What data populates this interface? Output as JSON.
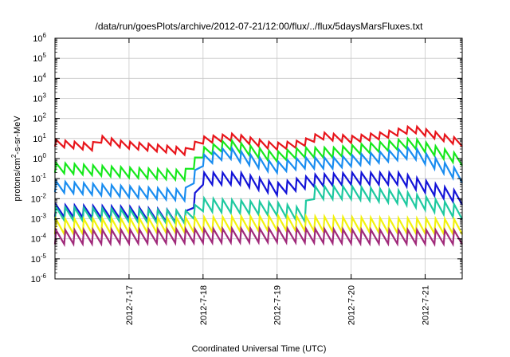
{
  "chart_data": {
    "type": "line",
    "title": "/data/run/goesPlots/archive/2012-07-21/12:00/flux/../flux/5daysMarsFluxes.txt",
    "xlabel": "Coordinated Universal Time (UTC)",
    "ylabel": "protons/cm²-s-sr-MeV",
    "yscale": "log",
    "ylim": [
      1e-06,
      1000000.0
    ],
    "xlim": [
      "2012-07-16T00:00",
      "2012-07-21T12:00"
    ],
    "grid": true,
    "legend": "none",
    "x_ticks": [
      {
        "label": "2012-7-17",
        "date": "2012-07-17"
      },
      {
        "label": "2012-7-18",
        "date": "2012-07-18"
      },
      {
        "label": "2012-7-19",
        "date": "2012-07-19"
      },
      {
        "label": "2012-7-20",
        "date": "2012-07-20"
      },
      {
        "label": "2012-7-21",
        "date": "2012-07-21"
      }
    ],
    "y_ticks": [
      {
        "base": "10",
        "exp": "-6",
        "value": 1e-06
      },
      {
        "base": "10",
        "exp": "-5",
        "value": 1e-05
      },
      {
        "base": "10",
        "exp": "-4",
        "value": 0.0001
      },
      {
        "base": "10",
        "exp": "-3",
        "value": 0.001
      },
      {
        "base": "10",
        "exp": "-2",
        "value": 0.01
      },
      {
        "base": "10",
        "exp": "-1",
        "value": 0.1
      },
      {
        "base": "10",
        "exp": "0",
        "value": 1
      },
      {
        "base": "10",
        "exp": "1",
        "value": 10
      },
      {
        "base": "10",
        "exp": "2",
        "value": 100
      },
      {
        "base": "10",
        "exp": "3",
        "value": 1000
      },
      {
        "base": "10",
        "exp": "4",
        "value": 10000
      },
      {
        "base": "10",
        "exp": "5",
        "value": 100000
      },
      {
        "base": "10",
        "exp": "6",
        "value": 1000000
      }
    ],
    "series": [
      {
        "color": "#e8151b",
        "x": [
          "2012-07-16T00:00",
          "2012-07-16T12:00",
          "2012-07-16T14:00",
          "2012-07-16T22:00",
          "2012-07-17T12:00",
          "2012-07-17T19:00",
          "2012-07-17T23:00",
          "2012-07-18T10:00",
          "2012-07-18T23:00",
          "2012-07-19T08:00",
          "2012-07-19T14:00",
          "2012-07-20T00:00",
          "2012-07-20T10:00",
          "2012-07-20T20:00",
          "2012-07-21T12:00"
        ],
        "y": [
          6.0,
          3.8,
          10.0,
          5.0,
          3.0,
          2.2,
          8.0,
          12.0,
          4.0,
          5.5,
          14.0,
          9.0,
          14.0,
          30.0,
          6.0
        ],
        "sawtooth": 0.35
      },
      {
        "color": "#16e81c",
        "x": [
          "2012-07-16T00:00",
          "2012-07-17T00:00",
          "2012-07-17T18:00",
          "2012-07-18T00:00",
          "2012-07-18T08:00",
          "2012-07-18T23:00",
          "2012-07-19T08:00",
          "2012-07-19T18:00",
          "2012-07-20T10:00",
          "2012-07-20T20:00",
          "2012-07-21T12:00"
        ],
        "y": [
          0.35,
          0.2,
          0.15,
          2.0,
          5.0,
          1.2,
          2.0,
          2.0,
          4.0,
          6.0,
          0.8
        ],
        "sawtooth": 0.5
      },
      {
        "color": "#1a8df0",
        "x": [
          "2012-07-16T00:00",
          "2012-07-17T00:00",
          "2012-07-17T18:00",
          "2012-07-18T00:00",
          "2012-07-18T08:00",
          "2012-07-18T23:00",
          "2012-07-19T08:00",
          "2012-07-19T18:00",
          "2012-07-20T10:00",
          "2012-07-20T20:00",
          "2012-07-21T12:00"
        ],
        "y": [
          0.04,
          0.022,
          0.015,
          0.8,
          2.0,
          0.35,
          0.6,
          0.6,
          1.2,
          2.0,
          0.12
        ],
        "sawtooth": 0.55
      },
      {
        "color": "#1414d8",
        "x": [
          "2012-07-16T00:00",
          "2012-07-17T00:00",
          "2012-07-17T19:00",
          "2012-07-18T00:00",
          "2012-07-18T12:00",
          "2012-07-19T00:00",
          "2012-07-19T12:00",
          "2012-07-20T00:00",
          "2012-07-20T16:00",
          "2012-07-21T12:00"
        ],
        "y": [
          0.0025,
          0.002,
          0.0012,
          0.1,
          0.1,
          0.03,
          0.08,
          0.1,
          0.1,
          0.01
        ],
        "sawtooth": 0.6
      },
      {
        "color": "#1ec9a0",
        "x": [
          "2012-07-16T00:00",
          "2012-07-17T00:00",
          "2012-07-17T19:00",
          "2012-07-18T00:00",
          "2012-07-19T00:00",
          "2012-07-19T09:00",
          "2012-07-19T10:00",
          "2012-07-20T00:00",
          "2012-07-20T16:00",
          "2012-07-21T12:00"
        ],
        "y": [
          0.0018,
          0.0014,
          0.0012,
          0.005,
          0.003,
          0.0015,
          0.02,
          0.02,
          0.012,
          0.002
        ],
        "sawtooth": 0.65
      },
      {
        "color": "#f2f20e",
        "x": [
          "2012-07-16T00:00",
          "2012-07-18T00:00",
          "2012-07-19T00:00",
          "2012-07-20T00:00",
          "2012-07-21T12:00"
        ],
        "y": [
          0.0004,
          0.0005,
          0.0006,
          0.0005,
          0.0004
        ],
        "sawtooth": 0.75
      },
      {
        "color": "#a02a7a",
        "x": [
          "2012-07-16T00:00",
          "2012-07-18T00:00",
          "2012-07-19T00:00",
          "2012-07-20T00:00",
          "2012-07-21T12:00"
        ],
        "y": [
          0.00012,
          0.00014,
          0.00015,
          0.00013,
          0.00012
        ],
        "sawtooth": 0.7
      }
    ]
  }
}
